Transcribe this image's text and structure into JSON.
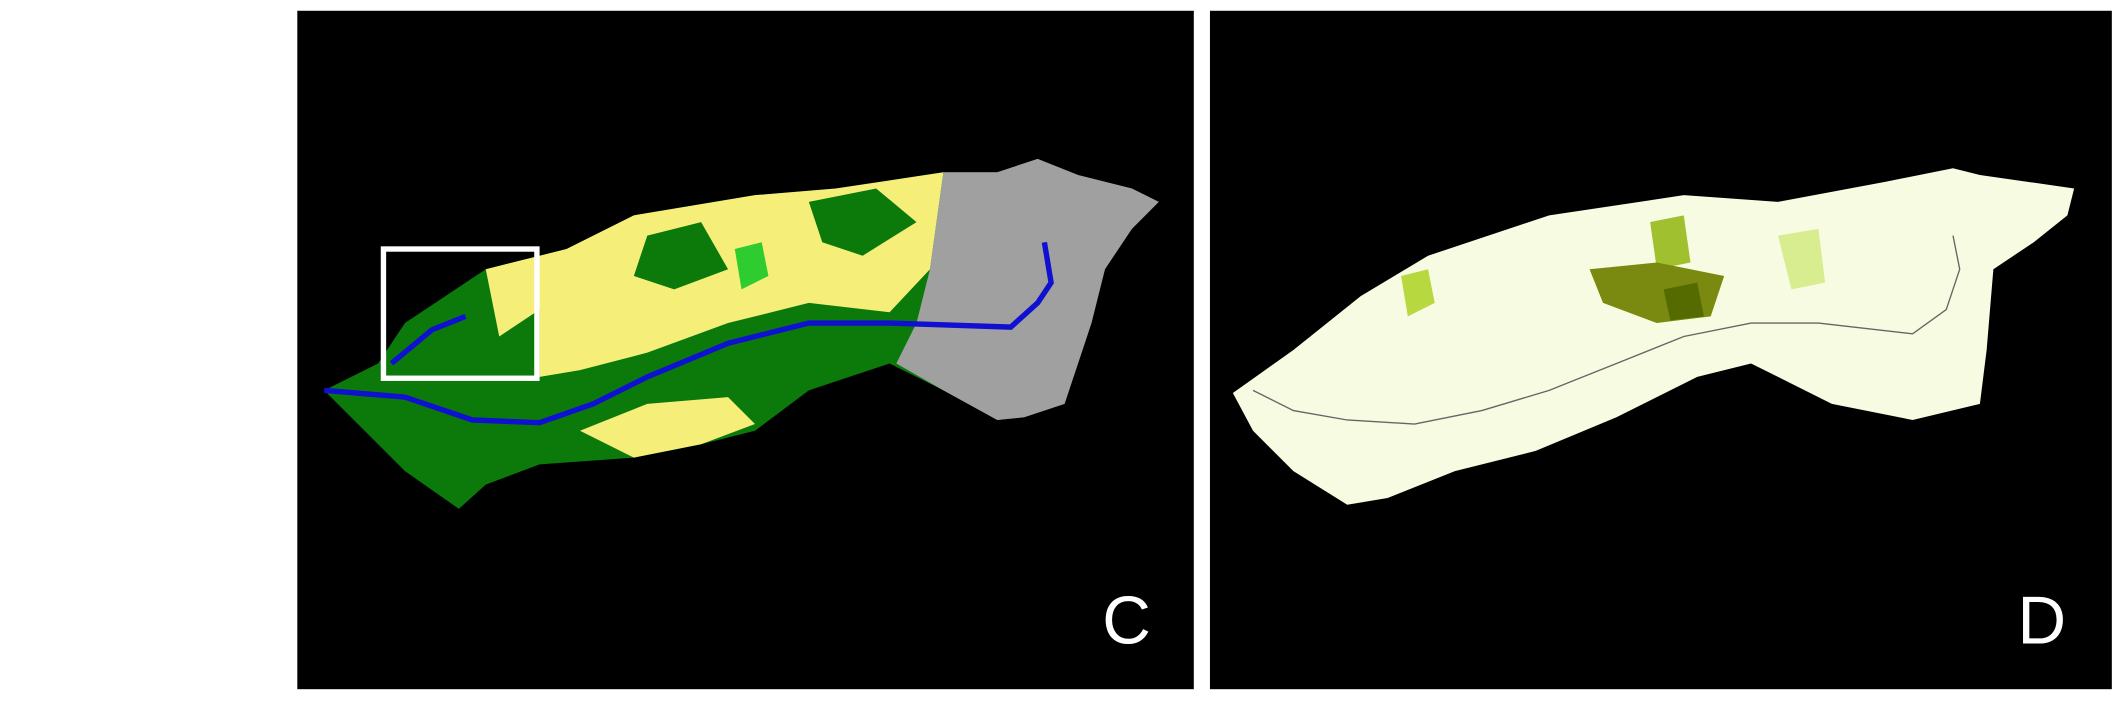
{
  "panels": [
    {
      "label": "C"
    },
    {
      "label": "D"
    }
  ]
}
